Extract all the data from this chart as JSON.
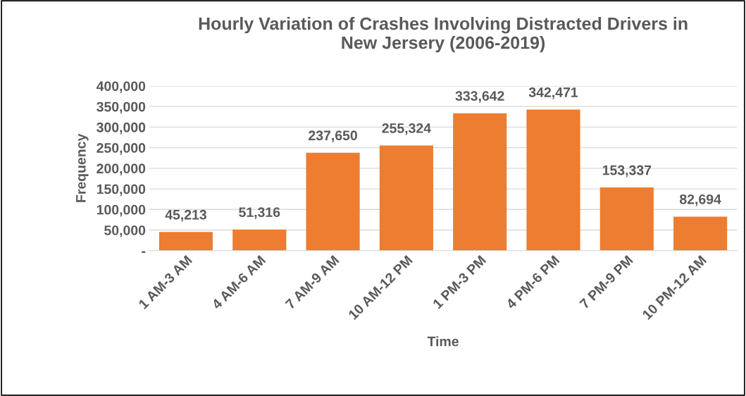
{
  "chart_data": {
    "type": "bar",
    "title": "Hourly Variation of Crashes Involving Distracted Drivers in\nNew Jersery (2006-2019)",
    "xlabel": "Time",
    "ylabel": "Frequency",
    "categories": [
      "1 AM-3 AM",
      "4 AM-6 AM",
      "7 AM-9 AM",
      "10 AM-12 PM",
      "1 PM-3 PM",
      "4 PM-6 PM",
      "7 PM-9 PM",
      "10 PM-12 AM"
    ],
    "values": [
      45213,
      51316,
      237650,
      255324,
      333642,
      342471,
      153337,
      82694
    ],
    "value_labels": [
      "45,213",
      "51,316",
      "237,650",
      "255,324",
      "333,642",
      "342,471",
      "153,337",
      "82,694"
    ],
    "color": "#ed7d31",
    "ylim": [
      0,
      400000
    ],
    "yticks": [
      {
        "value": 0,
        "label": "-"
      },
      {
        "value": 50000,
        "label": "50,000"
      },
      {
        "value": 100000,
        "label": "100,000"
      },
      {
        "value": 150000,
        "label": "150,000"
      },
      {
        "value": 200000,
        "label": "200,000"
      },
      {
        "value": 250000,
        "label": "250,000"
      },
      {
        "value": 300000,
        "label": "300,000"
      },
      {
        "value": 350000,
        "label": "350,000"
      },
      {
        "value": 400000,
        "label": "400,000"
      }
    ],
    "grid": "y",
    "legend": false
  }
}
